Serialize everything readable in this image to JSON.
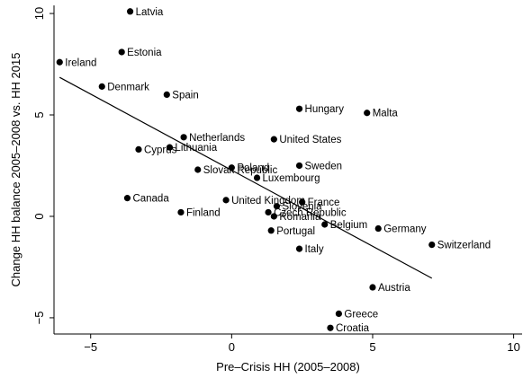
{
  "chart_data": {
    "type": "scatter",
    "xlabel": "Pre–Crisis HH (2005–2008)",
    "ylabel": "Change HH balance 2005–2008 vs. HH 2015",
    "xlim": [
      -6.3,
      10.3
    ],
    "ylim": [
      -5.8,
      10.4
    ],
    "xticks": [
      -5,
      0,
      5,
      10
    ],
    "yticks": [
      -5,
      0,
      5,
      10
    ],
    "xtick_labels": [
      "−5",
      "0",
      "5",
      "10"
    ],
    "ytick_labels": [
      "−5",
      "0",
      "5",
      "10"
    ],
    "grid": false,
    "legend": "none",
    "points": [
      {
        "label": "Latvia",
        "x": -3.6,
        "y": 10.1
      },
      {
        "label": "Estonia",
        "x": -3.9,
        "y": 8.1
      },
      {
        "label": "Ireland",
        "x": -6.1,
        "y": 7.6
      },
      {
        "label": "Denmark",
        "x": -4.6,
        "y": 6.4
      },
      {
        "label": "Spain",
        "x": -2.3,
        "y": 6.0
      },
      {
        "label": "Hungary",
        "x": 2.4,
        "y": 5.3
      },
      {
        "label": "Malta",
        "x": 4.8,
        "y": 5.1
      },
      {
        "label": "Netherlands",
        "x": -1.7,
        "y": 3.9
      },
      {
        "label": "United States",
        "x": 1.5,
        "y": 3.8
      },
      {
        "label": "Lithuania",
        "x": -2.2,
        "y": 3.4
      },
      {
        "label": "Cyprus",
        "x": -3.3,
        "y": 3.3
      },
      {
        "label": "Sweden",
        "x": 2.4,
        "y": 2.5
      },
      {
        "label": "Poland",
        "x": 0.0,
        "y": 2.4
      },
      {
        "label": "Slovak Republic",
        "x": -1.2,
        "y": 2.3
      },
      {
        "label": "Luxembourg",
        "x": 0.9,
        "y": 1.9
      },
      {
        "label": "Canada",
        "x": -3.7,
        "y": 0.9
      },
      {
        "label": "United Kingdom",
        "x": -0.2,
        "y": 0.8
      },
      {
        "label": "France",
        "x": 2.5,
        "y": 0.7
      },
      {
        "label": "Slovenia",
        "x": 1.6,
        "y": 0.5
      },
      {
        "label": "Czech Republic",
        "x": 1.3,
        "y": 0.2
      },
      {
        "label": "Finland",
        "x": -1.8,
        "y": 0.2
      },
      {
        "label": "Romania",
        "x": 1.5,
        "y": 0.0
      },
      {
        "label": "Belgium",
        "x": 3.3,
        "y": -0.4
      },
      {
        "label": "Germany",
        "x": 5.2,
        "y": -0.6
      },
      {
        "label": "Portugal",
        "x": 1.4,
        "y": -0.7
      },
      {
        "label": "Switzerland",
        "x": 7.1,
        "y": -1.4
      },
      {
        "label": "Italy",
        "x": 2.4,
        "y": -1.6
      },
      {
        "label": "Austria",
        "x": 5.0,
        "y": -3.5
      },
      {
        "label": "Greece",
        "x": 3.8,
        "y": -4.8
      },
      {
        "label": "Croatia",
        "x": 3.5,
        "y": -5.5
      }
    ],
    "fit_line": {
      "x": [
        -6.1,
        7.1
      ],
      "y": [
        6.85,
        -3.05
      ]
    }
  }
}
